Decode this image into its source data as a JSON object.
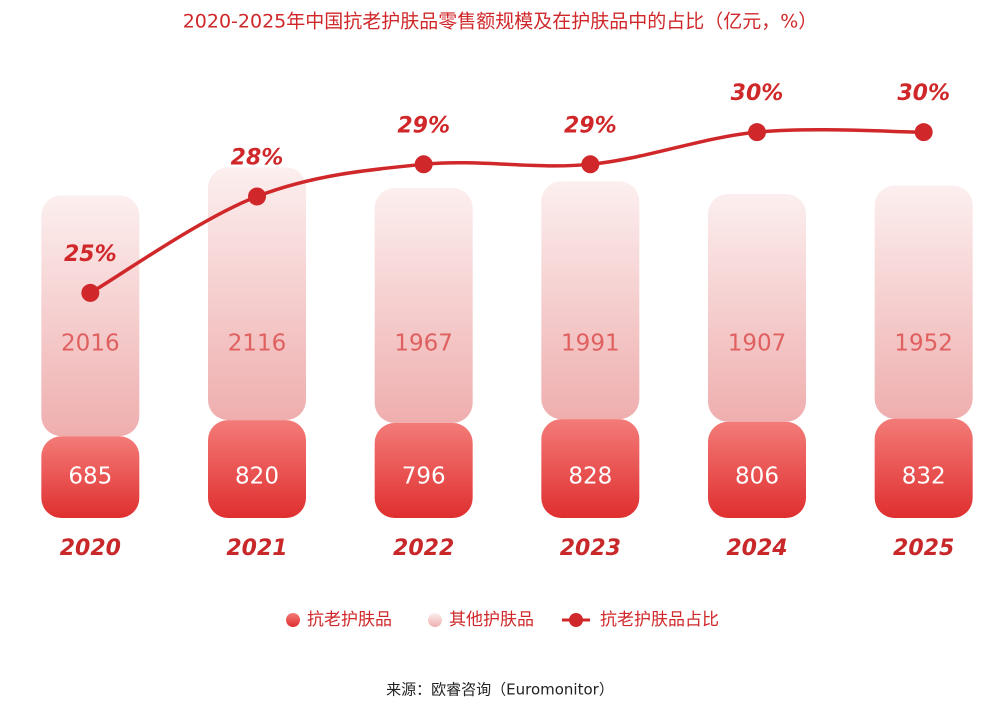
{
  "chart_data": {
    "type": "bar-line",
    "title": "2020-2025年中国抗老护肤品零售额规模及在护肤品中的占比（亿元，%）",
    "categories": [
      "2020",
      "2021",
      "2022",
      "2023",
      "2024",
      "2025"
    ],
    "series": [
      {
        "name": "抗老护肤品",
        "type": "bar",
        "color": "#e5393a",
        "values": [
          685,
          820,
          796,
          828,
          806,
          832
        ]
      },
      {
        "name": "其他护肤品",
        "type": "bar",
        "color": "#f4c2c2",
        "values": [
          2016,
          2116,
          1967,
          1991,
          1907,
          1952
        ]
      },
      {
        "name": "抗老护肤品占比",
        "type": "line",
        "axis": "y2",
        "color": "#d0282a",
        "values": [
          25,
          28,
          29,
          29,
          30,
          30
        ],
        "value_labels": [
          "25%",
          "28%",
          "29%",
          "29%",
          "30%",
          "30%"
        ]
      }
    ],
    "ylim": [
      0,
      3500
    ],
    "y2lim": [
      18,
      31
    ],
    "source": "来源：欧睿咨询（Euromonitor）"
  }
}
